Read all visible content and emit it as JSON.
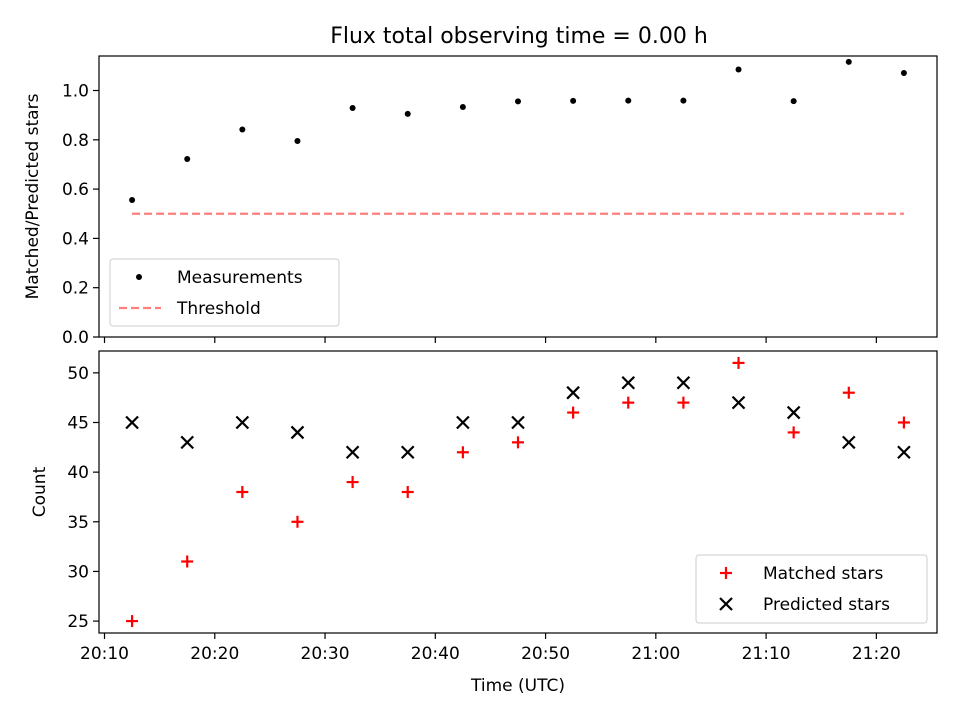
{
  "figure": {
    "title": "Flux total observing time = 0.00 h"
  },
  "chart_data": [
    {
      "type": "scatter",
      "title": "Flux total observing time = 0.00 h",
      "xlabel": "",
      "ylabel": "Matched/Predicted stars",
      "x_unit": "time of day (UTC)",
      "x": [
        "20:12:30",
        "20:17:30",
        "20:22:30",
        "20:27:30",
        "20:32:30",
        "20:37:30",
        "20:42:30",
        "20:47:30",
        "20:52:30",
        "20:57:30",
        "21:02:30",
        "21:07:30",
        "21:12:30",
        "21:17:30",
        "21:22:30"
      ],
      "xlim": [
        "20:09:30",
        "21:25:30"
      ],
      "ylim": [
        0,
        1.14
      ],
      "yticks": [
        "0.0",
        "0.2",
        "0.4",
        "0.6",
        "0.8",
        "1.0"
      ],
      "ytick_values": [
        0,
        0.2,
        0.4,
        0.6,
        0.8,
        1.0
      ],
      "series": [
        {
          "name": "Measurements",
          "marker": "dot",
          "color": "#000000",
          "values": [
            0.556,
            0.722,
            0.842,
            0.795,
            0.929,
            0.905,
            0.933,
            0.956,
            0.958,
            0.959,
            0.959,
            1.085,
            0.957,
            1.116,
            1.071
          ]
        },
        {
          "name": "Threshold",
          "style": "dashed-line",
          "color": "#ff7f7f",
          "x_range": [
            "20:12:30",
            "21:22:30"
          ],
          "value": 0.5
        }
      ],
      "legend": {
        "placement": "lower-left",
        "entries": [
          "Measurements",
          "Threshold"
        ]
      },
      "grid": false
    },
    {
      "type": "scatter",
      "title": "",
      "xlabel": "Time (UTC)",
      "ylabel": "Count",
      "x": [
        "20:12:30",
        "20:17:30",
        "20:22:30",
        "20:27:30",
        "20:32:30",
        "20:37:30",
        "20:42:30",
        "20:47:30",
        "20:52:30",
        "20:57:30",
        "21:02:30",
        "21:07:30",
        "21:12:30",
        "21:17:30",
        "21:22:30"
      ],
      "xlim": [
        "20:09:30",
        "21:25:30"
      ],
      "xticks": [
        "20:10",
        "20:20",
        "20:30",
        "20:40",
        "20:50",
        "21:00",
        "21:10",
        "21:20"
      ],
      "ylim": [
        23.8,
        52.2
      ],
      "yticks": [
        "25",
        "30",
        "35",
        "40",
        "45",
        "50"
      ],
      "ytick_values": [
        25,
        30,
        35,
        40,
        45,
        50
      ],
      "series": [
        {
          "name": "Matched stars",
          "marker": "plus",
          "color": "#ff0000",
          "values": [
            25,
            31,
            38,
            35,
            39,
            38,
            42,
            43,
            46,
            47,
            47,
            51,
            44,
            48,
            45
          ]
        },
        {
          "name": "Predicted stars",
          "marker": "x",
          "color": "#000000",
          "values": [
            45,
            43,
            45,
            44,
            42,
            42,
            45,
            45,
            48,
            49,
            49,
            47,
            46,
            43,
            42
          ]
        }
      ],
      "legend": {
        "placement": "lower-right",
        "entries": [
          "Matched stars",
          "Predicted stars"
        ]
      },
      "grid": false
    }
  ]
}
